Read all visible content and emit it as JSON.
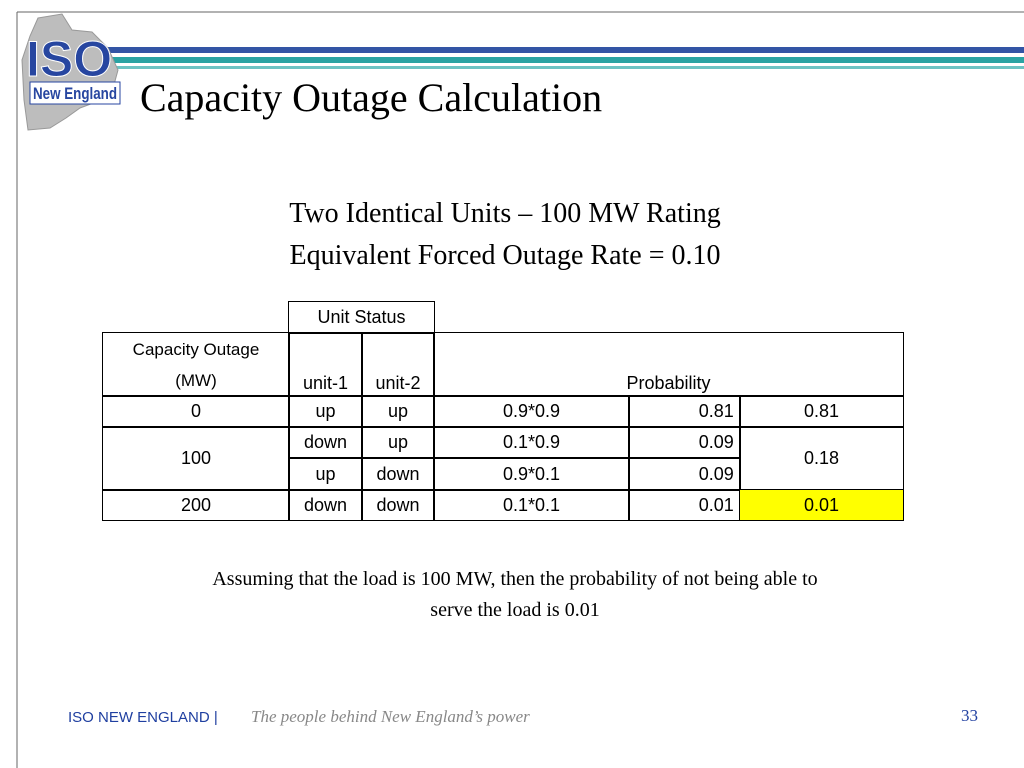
{
  "logo": {
    "main": "ISO",
    "sub": "New England"
  },
  "title": "Capacity Outage Calculation",
  "subtitle": [
    "Two Identical Units – 100 MW Rating",
    "Equivalent Forced Outage Rate = 0.10"
  ],
  "table": {
    "group_header": "Unit Status",
    "header": [
      "Capacity Outage (MW)",
      "unit-1",
      "unit-2",
      "Probability"
    ],
    "rows": [
      [
        0,
        "up",
        "up",
        "0.9*0.9",
        0.81,
        0.81
      ],
      [
        100,
        "down",
        "up",
        "0.1*0.9",
        0.09,
        0.18
      ],
      [
        "up",
        "down",
        "0.9*0.1",
        0.09
      ],
      [
        200,
        "down",
        "down",
        "0.1*0.1",
        0.01,
        0.01
      ]
    ]
  },
  "note": "Assuming that the load is 100 MW, then the probability of not being able to serve the load is 0.01",
  "footer": {
    "org": "ISO NEW ENGLAND |",
    "tagline": "The people behind New England’s power",
    "page": "33"
  }
}
